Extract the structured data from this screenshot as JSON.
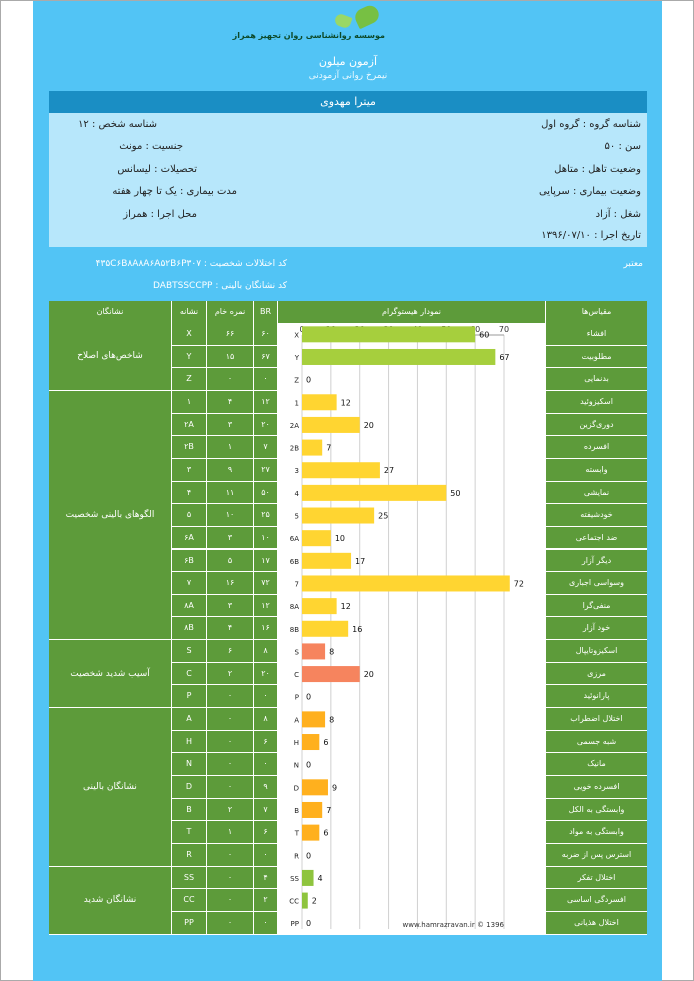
{
  "header": {
    "logo_text": "موسسه روانشناسی روان تجهیز همراز",
    "test_title": "آزمون میلون",
    "test_subtitle": "نیمرخ روانی آزمودنی"
  },
  "person": {
    "name": "میترا مهدوی",
    "group_id": "شناسه گروه : گروه اول",
    "person_id": "شناسه شخص : ۱۲",
    "age": "سن : ۵۰",
    "gender": "جنسیت : مونث",
    "marital": "وضعیت تاهل : متاهل",
    "education": "تحصیلات : لیسانس",
    "illness": "وضعیت بیماری : سرپایی",
    "illness_duration": "مدت بیماری : یک تا چهار هفته",
    "job": "شغل : آزاد",
    "place": "محل اجرا : همراز",
    "date": "تاریخ اجرا : ۱۳۹۶/۰۷/۱۰"
  },
  "codes": {
    "validity": "معتبر",
    "personality_code": "کد اختلالات شخصیت : ۴۳۵C۶B۸A۸A۶A۵۲B۶P۳۰۷",
    "clinical_code": "کد نشانگان بالینی : DABTSSCCPP"
  },
  "table": {
    "headers": {
      "scales": "مقیاس‌ها",
      "histogram": "نمودار هیستوگرام",
      "br": "BR",
      "raw": "نمره خام",
      "symbol": "نشانه",
      "syndromes": "نشانگان"
    },
    "groups": [
      {
        "label": "شاخص‌های اصلاح",
        "rows": 3
      },
      {
        "label": "الگوهای بالینی شخصیت",
        "rows": 11
      },
      {
        "label": "آسیب شدید شخصیت",
        "rows": 3
      },
      {
        "label": "نشانگان بالینی",
        "rows": 7
      },
      {
        "label": "نشانگان شدید",
        "rows": 3
      }
    ],
    "rows": [
      {
        "symbol": "X",
        "raw": "۶۶",
        "br": "۶۰",
        "scale": "افشاء"
      },
      {
        "symbol": "Y",
        "raw": "۱۵",
        "br": "۶۷",
        "scale": "مطلوبیت"
      },
      {
        "symbol": "Z",
        "raw": "۰",
        "br": "۰",
        "scale": "بدنمایی"
      },
      {
        "symbol": "۱",
        "raw": "۴",
        "br": "۱۲",
        "scale": "اسکیزوئید"
      },
      {
        "symbol": "۲A",
        "raw": "۳",
        "br": "۲۰",
        "scale": "دوری‌گزین"
      },
      {
        "symbol": "۲B",
        "raw": "۱",
        "br": "۷",
        "scale": "افسرده"
      },
      {
        "symbol": "۳",
        "raw": "۹",
        "br": "۲۷",
        "scale": "وابسته"
      },
      {
        "symbol": "۴",
        "raw": "۱۱",
        "br": "۵۰",
        "scale": "نمایشی"
      },
      {
        "symbol": "۵",
        "raw": "۱۰",
        "br": "۲۵",
        "scale": "خودشیفته"
      },
      {
        "symbol": "۶A",
        "raw": "۳",
        "br": "۱۰",
        "scale": "ضد اجتماعی"
      },
      {
        "symbol": "۶B",
        "raw": "۵",
        "br": "۱۷",
        "scale": "دیگر آزار"
      },
      {
        "symbol": "۷",
        "raw": "۱۶",
        "br": "۷۲",
        "scale": "وسواسی اجباری"
      },
      {
        "symbol": "۸A",
        "raw": "۳",
        "br": "۱۲",
        "scale": "منفی‌گرا"
      },
      {
        "symbol": "۸B",
        "raw": "۴",
        "br": "۱۶",
        "scale": "خود آزار"
      },
      {
        "symbol": "S",
        "raw": "۶",
        "br": "۸",
        "scale": "اسکیزوتایپال"
      },
      {
        "symbol": "C",
        "raw": "۲",
        "br": "۲۰",
        "scale": "مرزی"
      },
      {
        "symbol": "P",
        "raw": "۰",
        "br": "۰",
        "scale": "پارانوئید"
      },
      {
        "symbol": "A",
        "raw": "۰",
        "br": "۸",
        "scale": "اختلال اضطراب"
      },
      {
        "symbol": "H",
        "raw": "۰",
        "br": "۶",
        "scale": "شبه جسمی"
      },
      {
        "symbol": "N",
        "raw": "۰",
        "br": "۰",
        "scale": "مانیک"
      },
      {
        "symbol": "D",
        "raw": "۰",
        "br": "۹",
        "scale": "افسرده خویی"
      },
      {
        "symbol": "B",
        "raw": "۲",
        "br": "۷",
        "scale": "وابستگی به الکل"
      },
      {
        "symbol": "T",
        "raw": "۱",
        "br": "۶",
        "scale": "وابستگی به مواد"
      },
      {
        "symbol": "R",
        "raw": "۰",
        "br": "۰",
        "scale": "استرس پس از ضربه"
      },
      {
        "symbol": "SS",
        "raw": "۰",
        "br": "۴",
        "scale": "اختلال تفکر"
      },
      {
        "symbol": "CC",
        "raw": "۰",
        "br": "۲",
        "scale": "افسردگی اساسی"
      },
      {
        "symbol": "PP",
        "raw": "۰",
        "br": "۰",
        "scale": "اختلال هذیانی"
      }
    ]
  },
  "chart_data": {
    "type": "bar",
    "orientation": "horizontal",
    "categories": [
      "X",
      "Y",
      "Z",
      "1",
      "2A",
      "2B",
      "3",
      "4",
      "5",
      "6A",
      "6B",
      "7",
      "8A",
      "8B",
      "S",
      "C",
      "P",
      "A",
      "H",
      "N",
      "D",
      "B",
      "T",
      "R",
      "SS",
      "CC",
      "PP"
    ],
    "values": [
      60,
      67,
      0,
      12,
      20,
      7,
      27,
      50,
      25,
      10,
      17,
      72,
      12,
      16,
      8,
      20,
      0,
      8,
      6,
      0,
      9,
      7,
      6,
      0,
      4,
      2,
      0
    ],
    "bar_colors": [
      "#a6cf3d",
      "#a6cf3d",
      "#a6cf3d",
      "#ffd531",
      "#ffd531",
      "#ffd531",
      "#ffd531",
      "#ffd531",
      "#ffd531",
      "#ffd531",
      "#ffd531",
      "#ffd531",
      "#ffd531",
      "#ffd531",
      "#f6845e",
      "#f6845e",
      "#f6845e",
      "#ffb01e",
      "#ffb01e",
      "#ffb01e",
      "#ffb01e",
      "#ffb01e",
      "#ffb01e",
      "#ffb01e",
      "#8ec43e",
      "#8ec43e",
      "#8ec43e"
    ],
    "xlim": [
      0,
      70
    ],
    "xticks": [
      0,
      10,
      20,
      30,
      40,
      50,
      60,
      70
    ],
    "grid": true,
    "footer": "www.hamrazravan.ir © 1396"
  }
}
